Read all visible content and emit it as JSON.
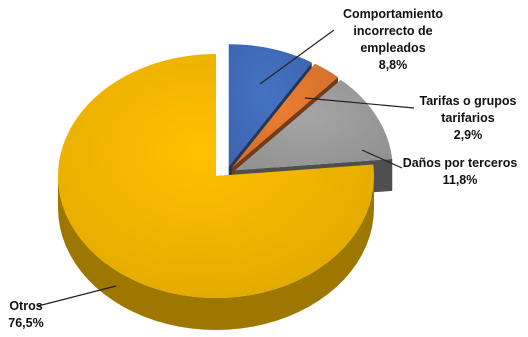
{
  "chart_data": {
    "type": "pie",
    "style": "3d-exploded",
    "legend": "none",
    "slices": [
      {
        "name": "Comportamiento incorrecto de empleados",
        "value": 8.8,
        "value_label": "8,8%",
        "color": "#4472C4"
      },
      {
        "name": "Tarifas o grupos tarifarios",
        "value": 2.9,
        "value_label": "2,9%",
        "color": "#ED7D31"
      },
      {
        "name": "Daños por terceros",
        "value": 11.8,
        "value_label": "11,8%",
        "color": "#A5A5A5"
      },
      {
        "name": "Otros",
        "value": 76.5,
        "value_label": "76,5%",
        "color": "#FFC000"
      }
    ],
    "labels": {
      "comportamiento": {
        "line1": "Comportamiento",
        "line2": "incorrecto de",
        "line3": "empleados",
        "value": "8,8%"
      },
      "tarifas": {
        "line1": "Tarifas o grupos",
        "line2": "tarifarios",
        "value": "2,9%"
      },
      "danos": {
        "line1": "Daños por terceros",
        "value": "11,8%"
      },
      "otros": {
        "line1": "Otros",
        "value": "76,5%"
      }
    }
  }
}
